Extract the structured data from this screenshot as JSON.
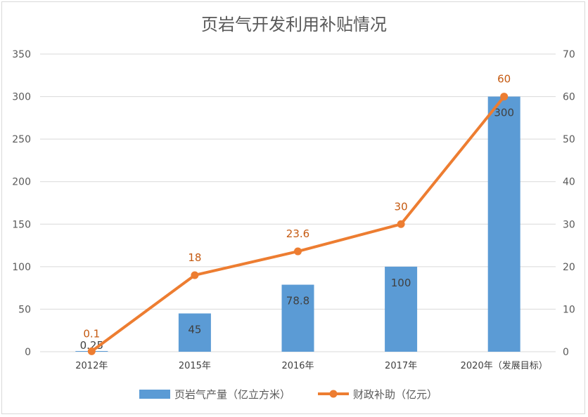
{
  "chart_data": {
    "type": "bar+line",
    "title": "页岩气开发利用补贴情况",
    "categories": [
      "2012年",
      "2015年",
      "2016年",
      "2017年",
      "2020年（发展目标）"
    ],
    "series": [
      {
        "name": "页岩气产量（亿立方米）",
        "type": "bar",
        "axis": "left",
        "color": "#5b9bd5",
        "values": [
          0.25,
          45,
          78.8,
          100,
          300
        ],
        "labels": [
          "0.25",
          "45",
          "78.8",
          "100",
          "300"
        ]
      },
      {
        "name": "财政补助（亿元）",
        "type": "line",
        "axis": "right",
        "color": "#ed7d31",
        "values": [
          0.1,
          18,
          23.6,
          30,
          60
        ],
        "labels": [
          "0.1",
          "18",
          "23.6",
          "30",
          "60"
        ]
      }
    ],
    "y_left": {
      "ylim": [
        0,
        350
      ],
      "ticks": [
        "0",
        "50",
        "100",
        "150",
        "200",
        "250",
        "300",
        "350"
      ]
    },
    "y_right": {
      "ylim": [
        0,
        70
      ],
      "ticks": [
        "0",
        "10",
        "20",
        "30",
        "40",
        "50",
        "60",
        "70"
      ]
    },
    "grid": true,
    "legend_position": "bottom"
  }
}
